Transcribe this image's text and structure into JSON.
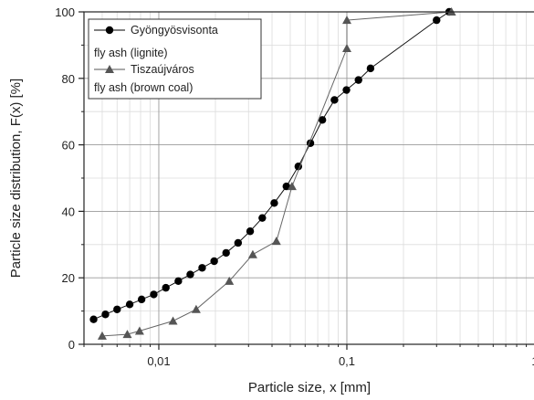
{
  "chart_data": {
    "type": "scatter",
    "xscale": "log",
    "xlim": [
      0.004,
      1
    ],
    "ylim": [
      0,
      100
    ],
    "xlabel": "Particle size, x [mm]",
    "ylabel": "Particle size distribution, F(x) [%]",
    "x_ticks": [
      0.01,
      0.1,
      1
    ],
    "x_tick_labels": [
      "0,01",
      "0,1",
      "1"
    ],
    "y_ticks": [
      0,
      20,
      40,
      60,
      80,
      100
    ],
    "y_tick_labels": [
      "0",
      "20",
      "40",
      "60",
      "80",
      "100"
    ],
    "grid": true,
    "legend_position": "top-left",
    "series": [
      {
        "name_line1": "Gyöngyösvisonta",
        "name_line2": "fly ash (lignite)",
        "marker": "circle",
        "color": "#000000",
        "x": [
          0.0045,
          0.0052,
          0.006,
          0.007,
          0.0081,
          0.0094,
          0.0109,
          0.0127,
          0.0147,
          0.017,
          0.0197,
          0.0228,
          0.0264,
          0.0306,
          0.0355,
          0.0411,
          0.0477,
          0.0552,
          0.064,
          0.0741,
          0.0859,
          0.0995,
          0.1153,
          0.1336,
          0.3,
          0.35
        ],
        "y": [
          7.5,
          9,
          10.5,
          12,
          13.5,
          15,
          17,
          19,
          21,
          23,
          25,
          27.5,
          30.5,
          34,
          38,
          42.5,
          47.5,
          53.5,
          60.5,
          67.5,
          73.5,
          76.5,
          79.5,
          83,
          97.5,
          100
        ]
      },
      {
        "name_line1": "Tiszaújváros",
        "name_line2": "fly ash (brown coal)",
        "marker": "triangle",
        "color": "#555555",
        "x": [
          0.005,
          0.0068,
          0.0079,
          0.0119,
          0.0158,
          0.0237,
          0.0316,
          0.0422,
          0.0511,
          0.1,
          0.1,
          0.36
        ],
        "y": [
          2.5,
          3,
          4,
          7,
          10.5,
          19,
          27,
          31,
          47.5,
          89,
          97.5,
          100
        ]
      }
    ]
  }
}
